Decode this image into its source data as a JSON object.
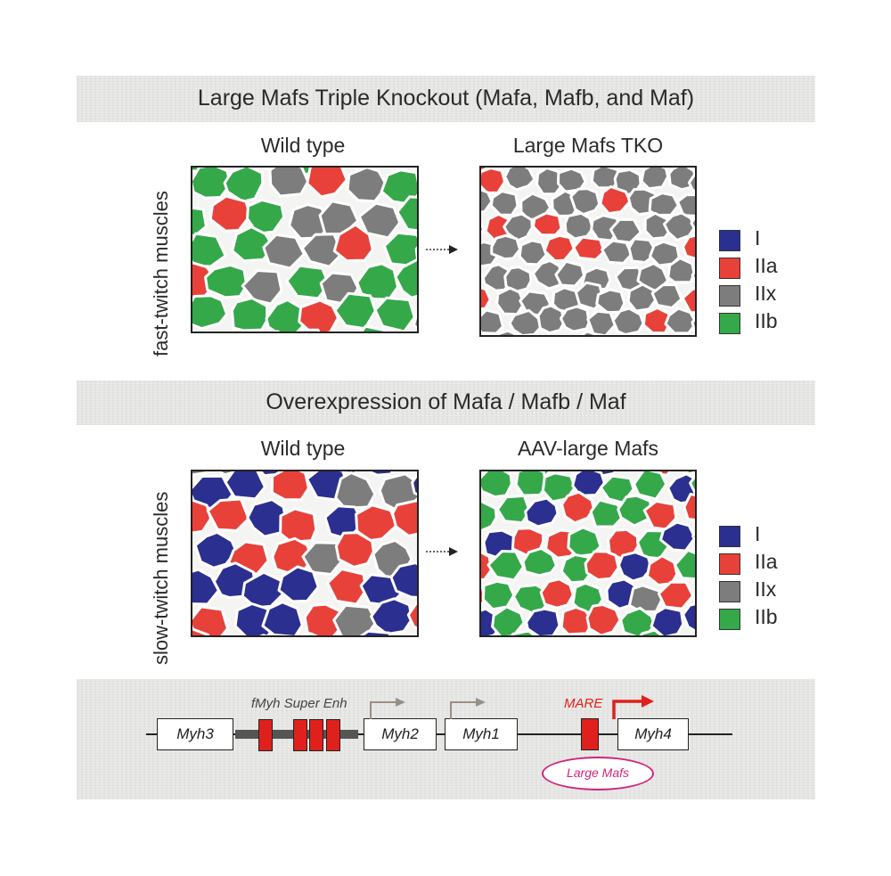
{
  "section_top": {
    "title": "Large Mafs Triple Knockout (Mafa, Mafb, and Maf)",
    "side_label": "fast-twitch muscles",
    "left_panel_title": "Wild type",
    "right_panel_title": "Large Mafs TKO"
  },
  "section_mid": {
    "title": "Overexpression of Mafa / Mafb / Maf",
    "side_label": "slow-twitch muscles",
    "left_panel_title": "Wild type",
    "right_panel_title": "AAV-large Mafs"
  },
  "legend": {
    "items": [
      {
        "label": "I",
        "color": "#2b2f8f"
      },
      {
        "label": "IIa",
        "color": "#e8413a"
      },
      {
        "label": "IIx",
        "color": "#7d7d7d"
      },
      {
        "label": "IIb",
        "color": "#35a84a"
      }
    ]
  },
  "genes": {
    "myh3": "Myh3",
    "myh2": "Myh2",
    "myh1": "Myh1",
    "myh4": "Myh4",
    "enhancer_label": "fMyh Super Enh",
    "mare_label": "MARE",
    "factor_label": "Large Mafs"
  },
  "colors": {
    "type_I": "#2b2f8f",
    "type_IIa": "#e8413a",
    "type_IIx": "#7d7d7d",
    "type_IIb": "#35a84a",
    "enhancer_red": "#e0201c",
    "mare_text": "#e0201c",
    "factor_pink": "#d0257a",
    "tss_arrow_grey": "#9a8f86",
    "tss_arrow_red": "#e0201c"
  }
}
